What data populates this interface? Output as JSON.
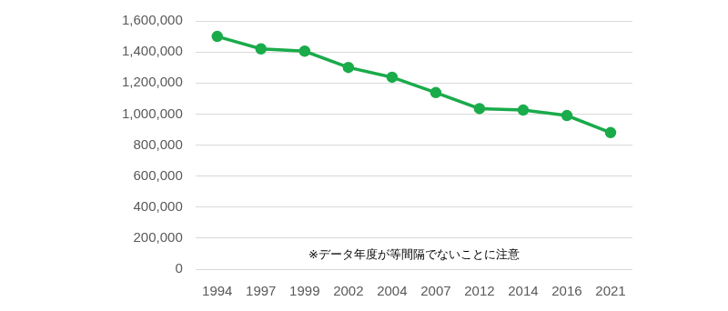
{
  "chart_data": {
    "type": "line",
    "categories": [
      "1994",
      "1997",
      "1999",
      "2002",
      "2004",
      "2007",
      "2012",
      "2014",
      "2016",
      "2021"
    ],
    "values": [
      1500000,
      1420000,
      1405000,
      1300000,
      1237000,
      1138000,
      1035000,
      1025000,
      990000,
      880000
    ],
    "color": "#1aab4b",
    "marker": "circle",
    "ylim": [
      0,
      1600000
    ],
    "yticks": [
      {
        "value": 0,
        "label": "0"
      },
      {
        "value": 200000,
        "label": "200,000"
      },
      {
        "value": 400000,
        "label": "400,000"
      },
      {
        "value": 600000,
        "label": "600,000"
      },
      {
        "value": 800000,
        "label": "800,000"
      },
      {
        "value": 1000000,
        "label": "1,000,000"
      },
      {
        "value": 1200000,
        "label": "1,200,000"
      },
      {
        "value": 1400000,
        "label": "1,400,000"
      },
      {
        "value": 1600000,
        "label": "1,600,000"
      }
    ],
    "grid": true,
    "annotations": [
      "※データ年度が等間隔でないことに注意"
    ]
  }
}
